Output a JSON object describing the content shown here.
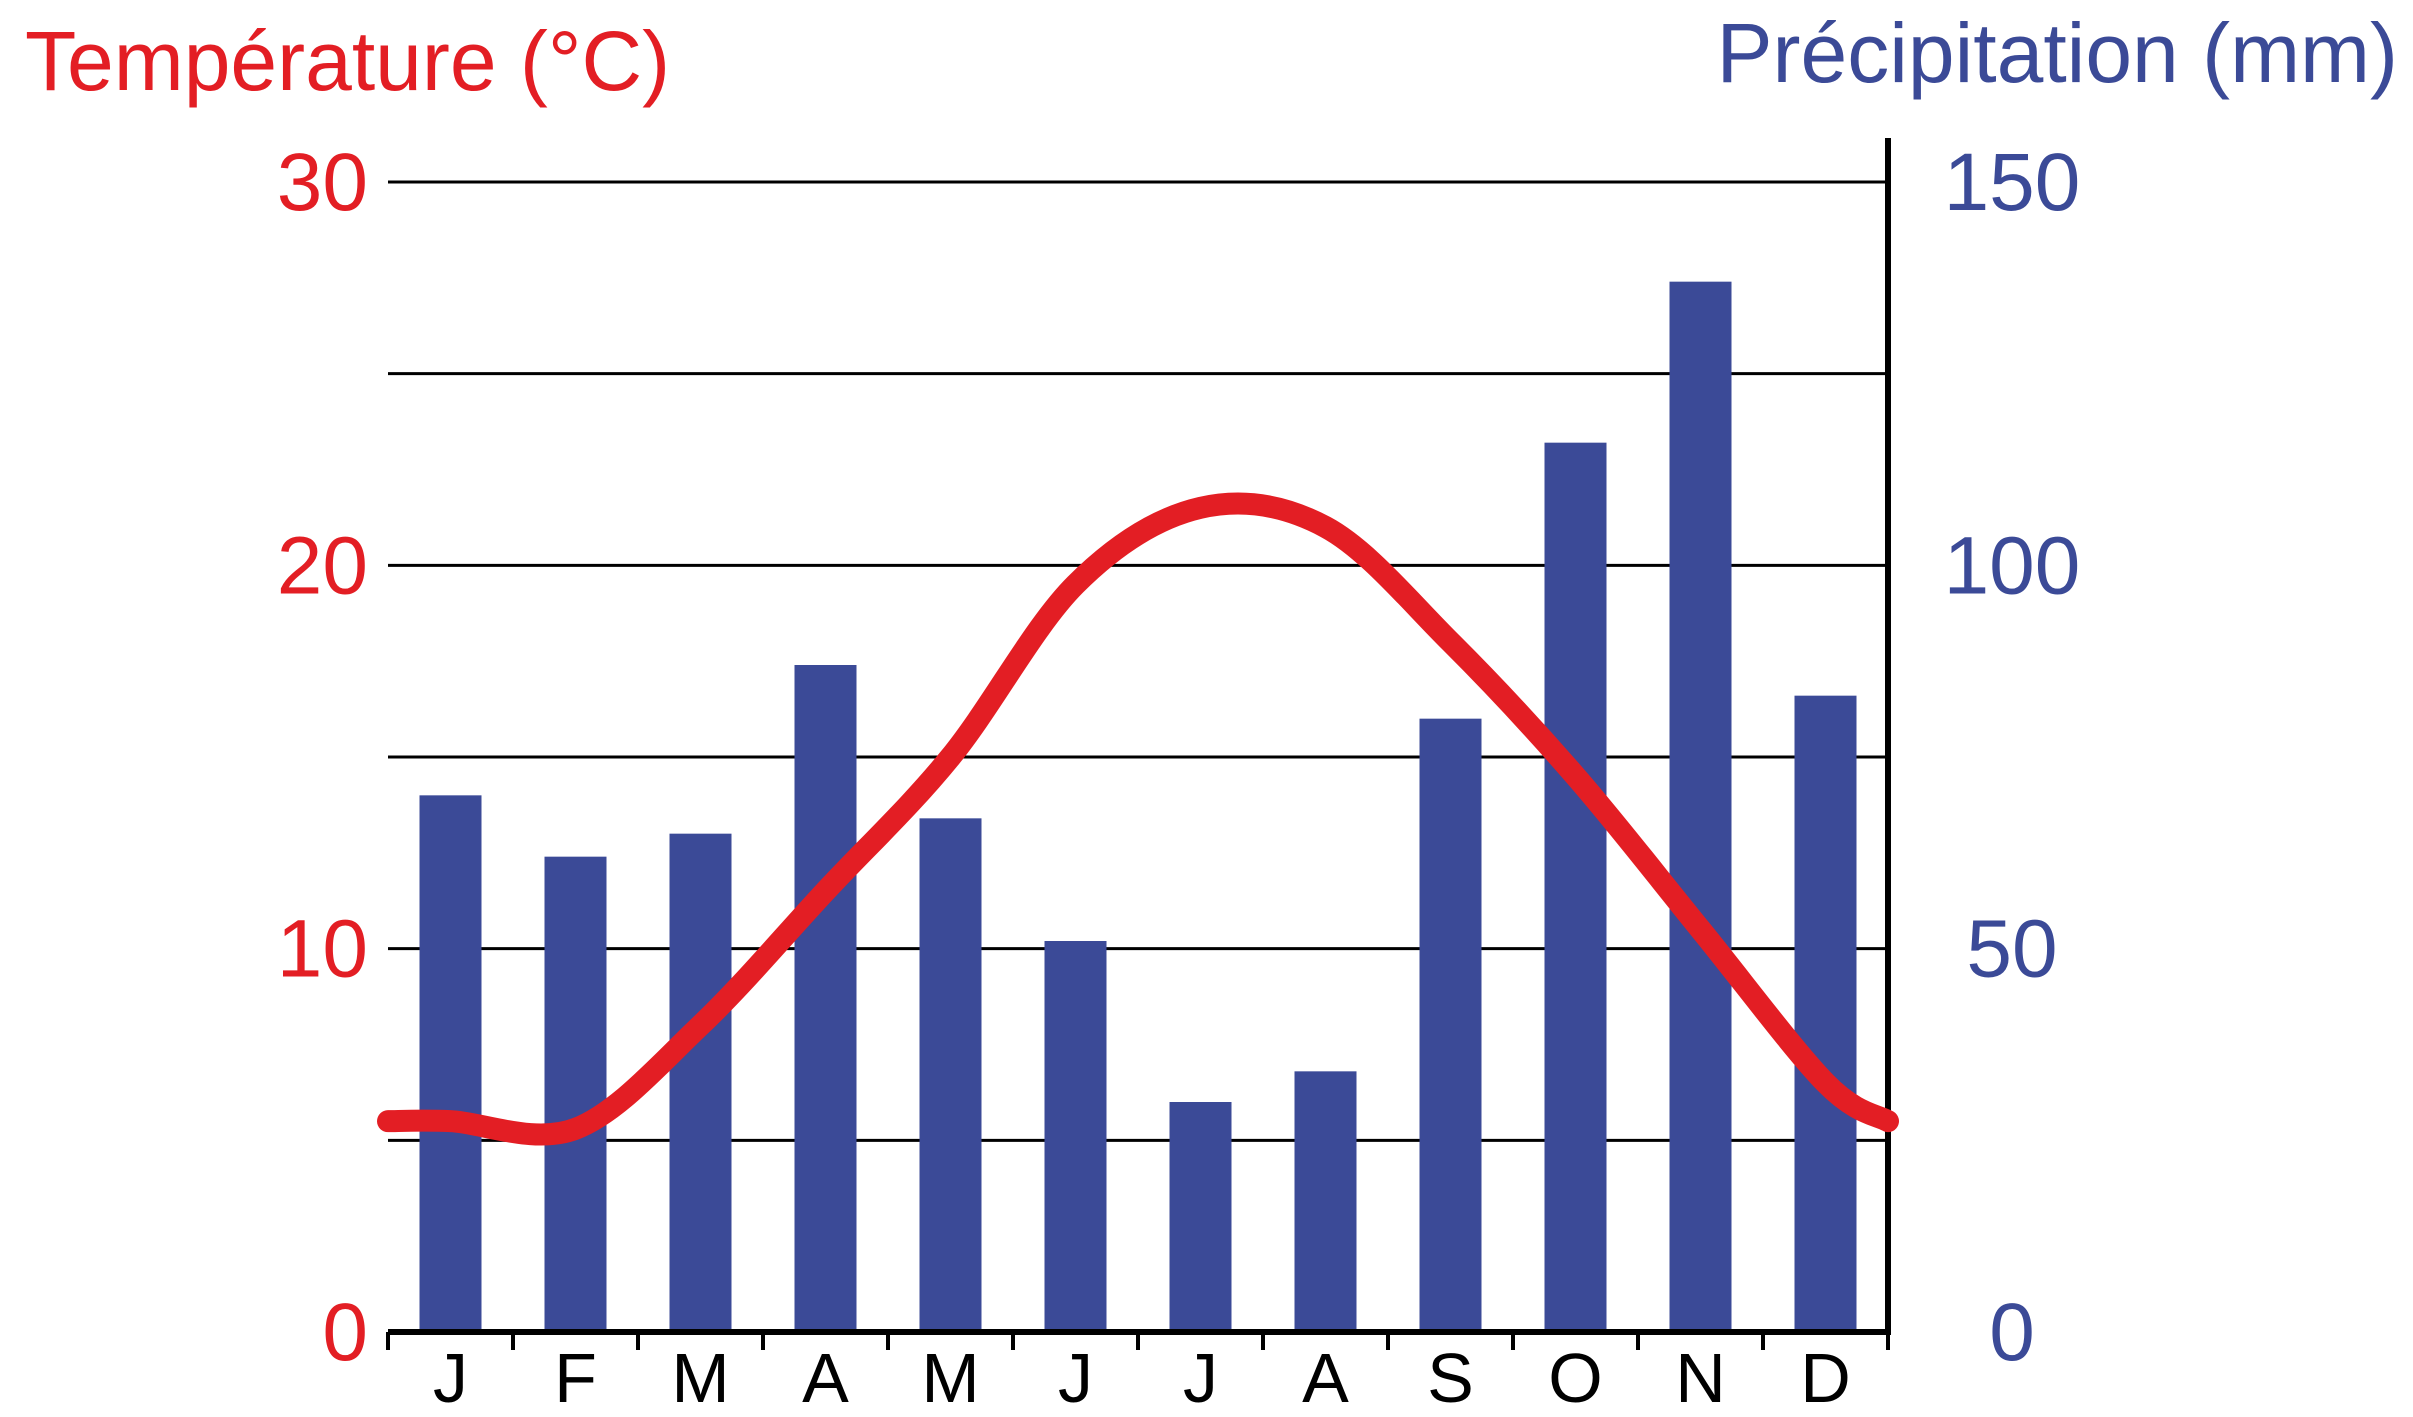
{
  "chart_data": {
    "type": "bar+line",
    "categories": [
      "J",
      "F",
      "M",
      "A",
      "M",
      "J",
      "J",
      "A",
      "S",
      "O",
      "N",
      "D"
    ],
    "temperature": {
      "axis_title": "Température (°C)",
      "ticks": [
        "0",
        "10",
        "20",
        "30"
      ],
      "ylim": [
        0,
        30
      ],
      "values": [
        5.5,
        5.3,
        8.0,
        11.5,
        15.0,
        19.5,
        21.5,
        21.0,
        18.0,
        14.5,
        10.5,
        6.5
      ],
      "color": "#e31e24"
    },
    "precipitation": {
      "axis_title": "Précipitation (mm)",
      "ticks": [
        "0",
        "50",
        "100",
        "150"
      ],
      "ylim": [
        0,
        150
      ],
      "values": [
        70,
        62,
        65,
        87,
        67,
        51,
        30,
        34,
        80,
        116,
        137,
        83
      ],
      "color": "#3b4a97"
    },
    "grid": true,
    "gridlines": [
      5,
      10,
      15,
      20,
      25,
      30
    ],
    "axis_color": "#000000"
  }
}
